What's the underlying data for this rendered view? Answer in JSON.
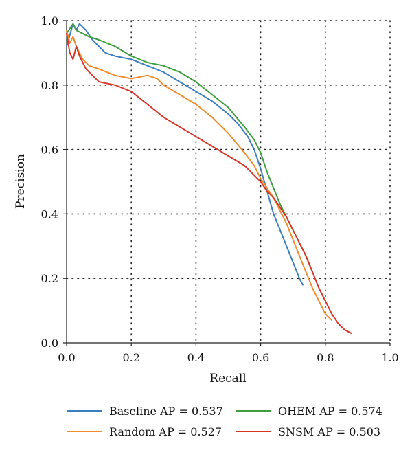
{
  "chart_data": {
    "type": "line",
    "title": "",
    "xlabel": "Recall",
    "ylabel": "Precision",
    "xlim": [
      0,
      1
    ],
    "ylim": [
      0,
      1
    ],
    "x_ticks": [
      "0.0",
      "0.2",
      "0.4",
      "0.6",
      "0.8",
      "1.0"
    ],
    "y_ticks": [
      "0.0",
      "0.2",
      "0.4",
      "0.6",
      "0.8",
      "1.0"
    ],
    "grid": true,
    "legend_position": "bottom",
    "series": [
      {
        "name": "Baseline AP = 0.537",
        "color": "#3a7ebf",
        "x": [
          0.0,
          0.02,
          0.03,
          0.04,
          0.05,
          0.06,
          0.08,
          0.1,
          0.12,
          0.15,
          0.2,
          0.25,
          0.3,
          0.35,
          0.4,
          0.45,
          0.5,
          0.53,
          0.56,
          0.58,
          0.6,
          0.62,
          0.64,
          0.66,
          0.68,
          0.7,
          0.72,
          0.73
        ],
        "y": [
          0.92,
          0.99,
          0.97,
          0.99,
          0.98,
          0.97,
          0.94,
          0.92,
          0.9,
          0.89,
          0.88,
          0.86,
          0.84,
          0.81,
          0.78,
          0.75,
          0.71,
          0.68,
          0.64,
          0.6,
          0.54,
          0.47,
          0.4,
          0.35,
          0.3,
          0.25,
          0.2,
          0.18
        ]
      },
      {
        "name": "OHEM AP = 0.574",
        "color": "#3c9e3c",
        "x": [
          0.0,
          0.02,
          0.03,
          0.05,
          0.07,
          0.1,
          0.15,
          0.2,
          0.25,
          0.3,
          0.35,
          0.4,
          0.45,
          0.5,
          0.55,
          0.58,
          0.6,
          0.62,
          0.64,
          0.66,
          0.68,
          0.7,
          0.72,
          0.74,
          0.76
        ],
        "y": [
          0.96,
          0.99,
          0.97,
          0.96,
          0.95,
          0.94,
          0.92,
          0.89,
          0.87,
          0.86,
          0.84,
          0.81,
          0.77,
          0.73,
          0.67,
          0.63,
          0.59,
          0.53,
          0.48,
          0.43,
          0.39,
          0.35,
          0.31,
          0.27,
          0.22
        ]
      },
      {
        "name": "Random AP = 0.527",
        "color": "#f08c2e",
        "x": [
          0.0,
          0.01,
          0.02,
          0.03,
          0.05,
          0.07,
          0.1,
          0.15,
          0.2,
          0.25,
          0.28,
          0.3,
          0.35,
          0.4,
          0.45,
          0.5,
          0.55,
          0.58,
          0.6,
          0.62,
          0.64,
          0.66,
          0.68,
          0.7,
          0.72,
          0.74,
          0.76,
          0.78,
          0.8,
          0.82
        ],
        "y": [
          0.97,
          0.93,
          0.95,
          0.92,
          0.88,
          0.86,
          0.85,
          0.83,
          0.82,
          0.83,
          0.82,
          0.8,
          0.77,
          0.74,
          0.7,
          0.65,
          0.59,
          0.55,
          0.51,
          0.48,
          0.45,
          0.41,
          0.37,
          0.32,
          0.27,
          0.22,
          0.17,
          0.13,
          0.09,
          0.07
        ]
      },
      {
        "name": "SNSM AP = 0.503",
        "color": "#d6362a",
        "x": [
          0.0,
          0.01,
          0.02,
          0.03,
          0.04,
          0.06,
          0.08,
          0.1,
          0.15,
          0.2,
          0.25,
          0.3,
          0.35,
          0.4,
          0.45,
          0.5,
          0.55,
          0.58,
          0.6,
          0.62,
          0.64,
          0.66,
          0.68,
          0.7,
          0.72,
          0.74,
          0.76,
          0.78,
          0.8,
          0.82,
          0.84,
          0.86,
          0.88
        ],
        "y": [
          0.96,
          0.9,
          0.88,
          0.92,
          0.89,
          0.85,
          0.83,
          0.81,
          0.8,
          0.78,
          0.74,
          0.7,
          0.67,
          0.64,
          0.61,
          0.58,
          0.55,
          0.52,
          0.5,
          0.47,
          0.45,
          0.42,
          0.39,
          0.35,
          0.31,
          0.27,
          0.22,
          0.17,
          0.13,
          0.09,
          0.06,
          0.04,
          0.03
        ]
      }
    ],
    "legend_order": [
      0,
      1,
      2,
      3
    ]
  }
}
